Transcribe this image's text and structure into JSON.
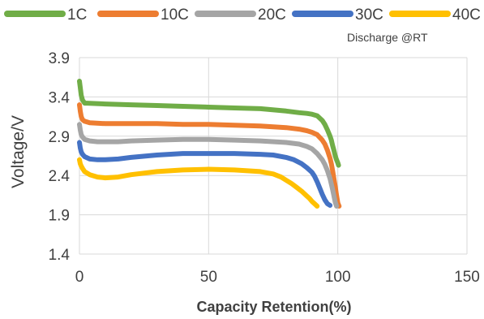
{
  "chart_data": {
    "type": "line",
    "title": "",
    "annotation": "Discharge @RT",
    "xlabel": "Capacity Retention(%)",
    "ylabel": "Voltage/V",
    "xlim": [
      0,
      150
    ],
    "ylim": [
      1.4,
      3.9
    ],
    "xticks": [
      "0",
      "50",
      "100",
      "150"
    ],
    "yticks": [
      "1.4",
      "1.9",
      "2.4",
      "2.9",
      "3.4",
      "3.9"
    ],
    "grid": true,
    "legend_position": "top",
    "series": [
      {
        "name": "1C",
        "color": "#70AD47",
        "x": [
          0,
          0.3,
          0.7,
          1.2,
          2,
          3,
          10,
          20,
          30,
          40,
          50,
          60,
          70,
          80,
          85,
          88,
          90,
          92,
          94,
          95,
          96,
          97,
          97.5,
          98,
          98.5,
          99,
          99.5,
          100,
          100.3
        ],
        "y": [
          3.6,
          3.52,
          3.42,
          3.36,
          3.32,
          3.32,
          3.31,
          3.3,
          3.29,
          3.28,
          3.27,
          3.26,
          3.25,
          3.22,
          3.2,
          3.19,
          3.18,
          3.16,
          3.1,
          3.05,
          2.98,
          2.9,
          2.85,
          2.78,
          2.72,
          2.65,
          2.6,
          2.56,
          2.53
        ]
      },
      {
        "name": "10C",
        "color": "#ED7D31",
        "x": [
          0,
          0.3,
          0.7,
          1.2,
          2,
          4,
          10,
          20,
          30,
          40,
          50,
          60,
          70,
          80,
          85,
          88,
          90,
          92,
          94,
          95,
          96,
          97,
          97.5,
          98,
          98.5,
          99,
          99.5,
          100,
          100.5
        ],
        "y": [
          3.3,
          3.22,
          3.15,
          3.11,
          3.09,
          3.07,
          3.06,
          3.06,
          3.06,
          3.05,
          3.05,
          3.04,
          3.03,
          3.01,
          2.99,
          2.97,
          2.95,
          2.92,
          2.85,
          2.8,
          2.72,
          2.62,
          2.55,
          2.46,
          2.36,
          2.26,
          2.15,
          2.05,
          2.01
        ]
      },
      {
        "name": "20C",
        "color": "#A5A5A5",
        "x": [
          0,
          0.3,
          0.7,
          1.2,
          2,
          4,
          7,
          10,
          15,
          20,
          30,
          40,
          50,
          60,
          70,
          80,
          85,
          88,
          90,
          92,
          94,
          95,
          96,
          97,
          98,
          98.5,
          99,
          99.5
        ],
        "y": [
          3.05,
          2.98,
          2.92,
          2.89,
          2.86,
          2.84,
          2.83,
          2.83,
          2.83,
          2.84,
          2.85,
          2.86,
          2.86,
          2.85,
          2.84,
          2.82,
          2.8,
          2.77,
          2.74,
          2.68,
          2.6,
          2.54,
          2.46,
          2.36,
          2.22,
          2.14,
          2.06,
          2.01
        ]
      },
      {
        "name": "30C",
        "color": "#4472C4",
        "x": [
          0,
          0.3,
          0.7,
          1.2,
          2,
          4,
          7,
          10,
          15,
          20,
          30,
          40,
          50,
          60,
          70,
          75,
          80,
          83,
          86,
          88,
          90,
          91,
          92,
          93,
          94,
          95,
          96,
          97
        ],
        "y": [
          2.82,
          2.75,
          2.7,
          2.67,
          2.64,
          2.61,
          2.6,
          2.6,
          2.61,
          2.63,
          2.66,
          2.68,
          2.68,
          2.68,
          2.67,
          2.66,
          2.63,
          2.6,
          2.55,
          2.5,
          2.44,
          2.39,
          2.32,
          2.24,
          2.16,
          2.09,
          2.04,
          2.02
        ]
      },
      {
        "name": "40C",
        "color": "#FFC000",
        "x": [
          0,
          0.3,
          0.7,
          1.2,
          2,
          4,
          7,
          10,
          15,
          20,
          30,
          40,
          50,
          60,
          70,
          75,
          78,
          80,
          82,
          84,
          86,
          88,
          89,
          90,
          91,
          92
        ],
        "y": [
          2.6,
          2.55,
          2.52,
          2.49,
          2.45,
          2.41,
          2.38,
          2.37,
          2.38,
          2.41,
          2.45,
          2.47,
          2.48,
          2.47,
          2.45,
          2.42,
          2.38,
          2.34,
          2.3,
          2.25,
          2.2,
          2.14,
          2.11,
          2.07,
          2.04,
          2.01
        ]
      }
    ]
  }
}
